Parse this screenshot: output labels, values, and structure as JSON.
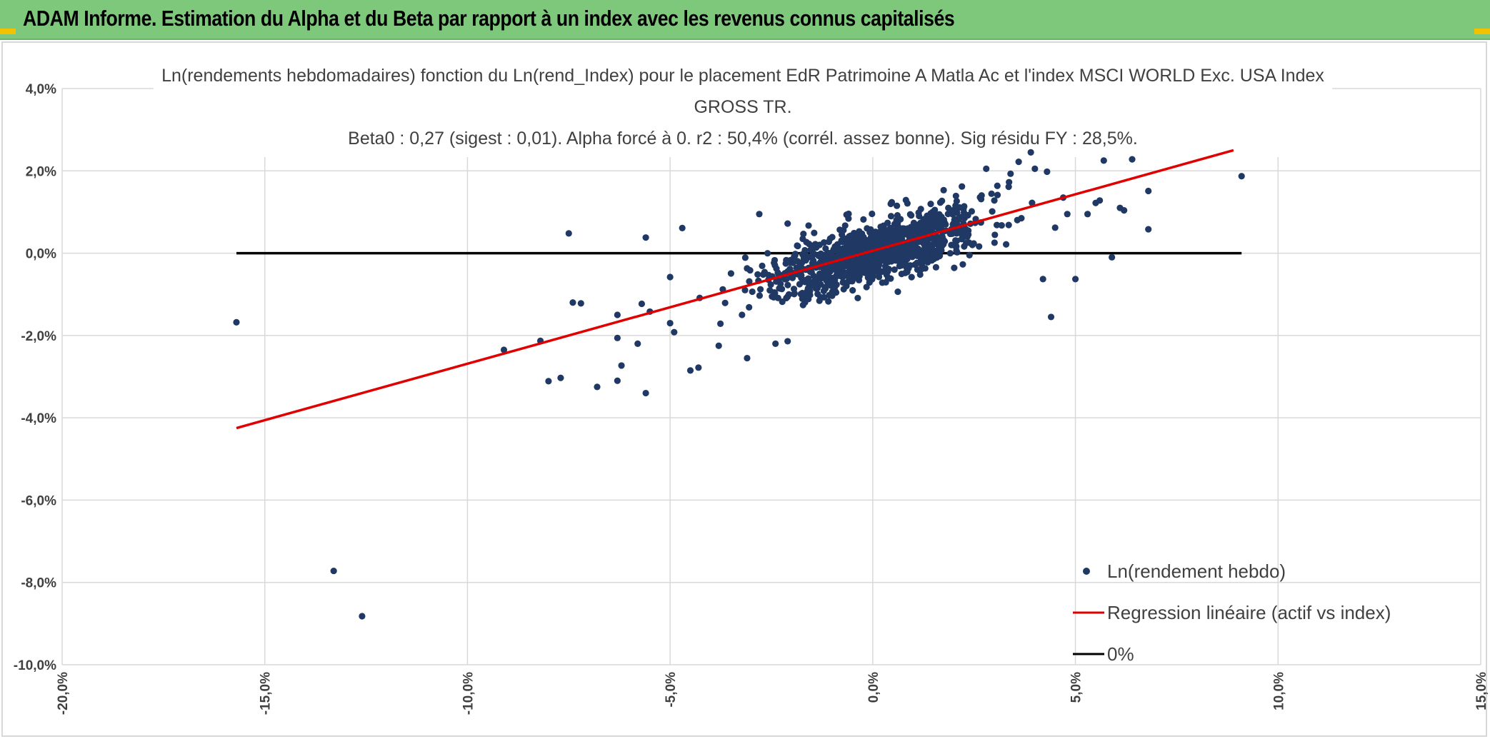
{
  "header": {
    "title": "ADAM Informe. Estimation du Alpha et du Beta par rapport à un index avec les revenus connus capitalisés",
    "background": "#7ec87c",
    "corner_color": "#f2c200"
  },
  "chart_data": {
    "type": "scatter",
    "title_lines": [
      "Ln(rendements hebdomadaires) fonction du Ln(rend_Index) pour le placement EdR Patrimoine A Matla Ac et l'index MSCI WORLD Exc. USA Index",
      "GROSS TR.",
      "Beta0 : 0,27 (sigest : 0,01). Alpha forcé à 0. r2 : 50,4% (corrél. assez bonne). Sig résidu FY : 28,5%."
    ],
    "xlabel": "",
    "ylabel": "",
    "xlim": [
      -0.2,
      0.15
    ],
    "ylim": [
      -0.1,
      0.04
    ],
    "x_ticks": [
      -0.2,
      -0.15,
      -0.1,
      -0.05,
      0.0,
      0.05,
      0.1,
      0.15
    ],
    "x_tick_labels": [
      "-20,0%",
      "-15,0%",
      "-10,0%",
      "-5,0%",
      "0,0%",
      "5,0%",
      "10,0%",
      "15,0%"
    ],
    "y_ticks": [
      0.04,
      0.02,
      0.0,
      -0.02,
      -0.04,
      -0.06,
      -0.08,
      -0.1
    ],
    "y_tick_labels": [
      "4,0%",
      "2,0%",
      "0,0%",
      "-2,0%",
      "-4,0%",
      "-6,0%",
      "-8,0%",
      "-10,0%"
    ],
    "grid": true,
    "legend_position": "bottom-right",
    "series": [
      {
        "name": "Ln(rendement hebdo)",
        "kind": "scatter",
        "color": "#203864",
        "cluster": {
          "count": 1050,
          "slope": 0.27,
          "x_sd": 0.013,
          "residual_sd": 0.0038
        },
        "points": [
          [
            -0.157,
            -0.0168
          ],
          [
            -0.133,
            -0.0772
          ],
          [
            -0.126,
            -0.0882
          ],
          [
            -0.091,
            -0.0235
          ],
          [
            -0.082,
            -0.0213
          ],
          [
            -0.08,
            -0.0311
          ],
          [
            -0.077,
            -0.0303
          ],
          [
            -0.075,
            0.0048
          ],
          [
            -0.074,
            -0.012
          ],
          [
            -0.072,
            -0.0122
          ],
          [
            -0.068,
            -0.0325
          ],
          [
            -0.063,
            -0.031
          ],
          [
            -0.063,
            -0.015
          ],
          [
            -0.063,
            -0.0206
          ],
          [
            -0.062,
            -0.0273
          ],
          [
            -0.058,
            -0.022
          ],
          [
            -0.057,
            -0.0123
          ],
          [
            -0.056,
            -0.034
          ],
          [
            -0.056,
            0.0038
          ],
          [
            -0.055,
            -0.0142
          ],
          [
            -0.05,
            -0.0058
          ],
          [
            -0.05,
            -0.017
          ],
          [
            -0.049,
            -0.0192
          ],
          [
            -0.047,
            0.0061
          ],
          [
            -0.045,
            -0.0285
          ],
          [
            -0.043,
            -0.0278
          ],
          [
            -0.038,
            -0.0225
          ],
          [
            -0.037,
            -0.0088
          ],
          [
            -0.031,
            -0.0255
          ],
          [
            -0.028,
            0.0095
          ],
          [
            -0.024,
            -0.022
          ],
          [
            -0.021,
            -0.0214
          ],
          [
            -0.021,
            0.0072
          ],
          [
            0.022,
            0.0162
          ],
          [
            0.028,
            0.0205
          ],
          [
            0.03,
            0.0128
          ],
          [
            0.034,
            0.0193
          ],
          [
            0.036,
            0.0222
          ],
          [
            0.039,
            0.0245
          ],
          [
            0.04,
            0.0205
          ],
          [
            0.043,
            0.0198
          ],
          [
            0.042,
            -0.0063
          ],
          [
            0.044,
            -0.0155
          ],
          [
            0.045,
            0.0062
          ],
          [
            0.047,
            0.0135
          ],
          [
            0.048,
            0.0095
          ],
          [
            0.05,
            -0.0063
          ],
          [
            0.053,
            0.0095
          ],
          [
            0.055,
            0.0122
          ],
          [
            0.056,
            0.0128
          ],
          [
            0.057,
            0.0225
          ],
          [
            0.059,
            -0.001
          ],
          [
            0.061,
            0.011
          ],
          [
            0.064,
            0.0228
          ],
          [
            0.062,
            0.0104
          ],
          [
            0.068,
            0.0151
          ],
          [
            0.068,
            0.0058
          ],
          [
            0.091,
            0.0187
          ]
        ]
      },
      {
        "name": "Regression linéaire (actif vs index)",
        "kind": "line",
        "color": "#e00000",
        "x": [
          -0.157,
          0.089
        ],
        "y": [
          -0.0425,
          0.025
        ]
      },
      {
        "name": "0%",
        "kind": "line",
        "color": "#000000",
        "x": [
          -0.157,
          0.091
        ],
        "y": [
          0.0,
          0.0
        ]
      }
    ]
  }
}
